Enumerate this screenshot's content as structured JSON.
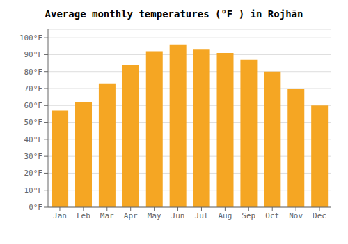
{
  "chart_data": {
    "type": "bar",
    "title": "Average monthly temperatures (°F ) in Rojhān",
    "categories": [
      "Jan",
      "Feb",
      "Mar",
      "Apr",
      "May",
      "Jun",
      "Jul",
      "Aug",
      "Sep",
      "Oct",
      "Nov",
      "Dec"
    ],
    "values": [
      57,
      62,
      73,
      84,
      92,
      96,
      93,
      91,
      87,
      80,
      70,
      60
    ],
    "color": "#F5A623",
    "ylim": [
      0,
      105
    ],
    "yticks": [
      {
        "value": 0,
        "label": "0°F"
      },
      {
        "value": 10,
        "label": "10°F"
      },
      {
        "value": 20,
        "label": "20°F"
      },
      {
        "value": 30,
        "label": "30°F"
      },
      {
        "value": 40,
        "label": "40°F"
      },
      {
        "value": 50,
        "label": "50°F"
      },
      {
        "value": 60,
        "label": "60°F"
      },
      {
        "value": 70,
        "label": "70°F"
      },
      {
        "value": 80,
        "label": "80°F"
      },
      {
        "value": 90,
        "label": "90°F"
      },
      {
        "value": 100,
        "label": "100°F"
      }
    ],
    "grid": true
  }
}
